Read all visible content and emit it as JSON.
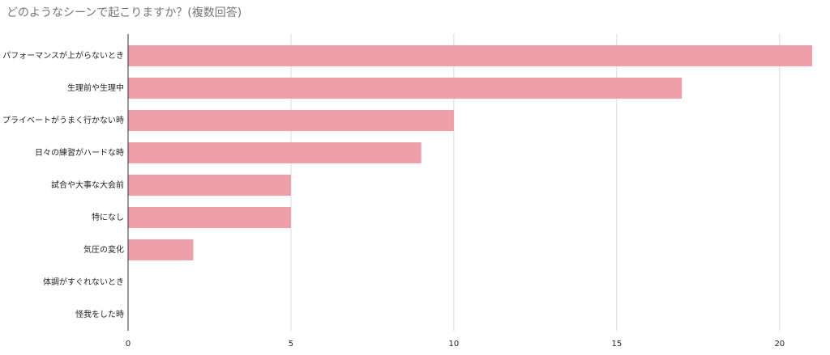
{
  "chart_data": {
    "type": "hbar",
    "title": "どのようなシーンで起こりますか？(複数回答)",
    "categories": [
      "パフォーマンスが上がらないとき",
      "生理前や生理中",
      "プライベートがうまく行かない時",
      "日々の練習がハードな時",
      "試合や大事な大会前",
      "特になし",
      "気圧の変化",
      "体調がすぐれないとき",
      "怪我をした時"
    ],
    "values": [
      21,
      17,
      10,
      9,
      5,
      5,
      2,
      0,
      0
    ],
    "color": "#eea0aa",
    "xlim": [
      0,
      21
    ],
    "xticks": [
      0,
      5,
      10,
      15,
      20
    ],
    "grid": true
  }
}
